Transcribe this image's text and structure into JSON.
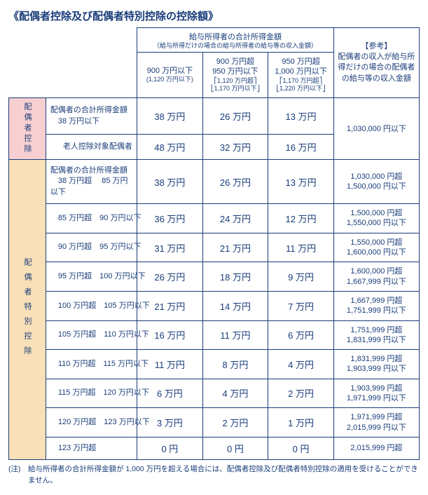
{
  "title": "《配偶者控除及び配偶者特別控除の控除額》",
  "header": {
    "group_title": "給与所得者の合計所得金額",
    "group_sub": "（給与所得だけの場合の給与所得者の給与等の収入金額）",
    "ref_title": "【参考】",
    "ref_desc": "配偶者の収入が給与所得だけの場合の配偶者の給与等の収入金額",
    "cols": [
      {
        "line1": "900 万円以下",
        "line2": "(1,120 万円以下)"
      },
      {
        "line1": "900 万円超",
        "line2": "950 万円以下",
        "b1": "1,120 万円超",
        "b2": "1,170 万円以下"
      },
      {
        "line1": "950 万円超",
        "line2": "1,000 万円以下",
        "b1": "1,170 万円超",
        "b2": "1,220 万円以下"
      }
    ]
  },
  "section1": {
    "label": "配偶者控除",
    "row1_desc": "配偶者の合計所得金額\n　38 万円以下",
    "row1": [
      "38 万円",
      "26 万円",
      "13 万円"
    ],
    "row2_desc": "老人控除対象配偶者",
    "row2": [
      "48 万円",
      "32 万円",
      "16 万円"
    ],
    "ref_merged": "1,030,000 円以下"
  },
  "section2": {
    "label": "配偶者特別控除",
    "rows": [
      {
        "desc": "配偶者の合計所得金額\n　38 万円超　 85 万円以下",
        "vals": [
          "38 万円",
          "26 万円",
          "13 万円"
        ],
        "ref": "1,030,000 円超\n1,500,000 円以下"
      },
      {
        "desc2": [
          "85 万円超",
          "90 万円以下"
        ],
        "vals": [
          "36 万円",
          "24 万円",
          "12 万円"
        ],
        "ref": "1,500,000 円超\n1,550,000 円以下"
      },
      {
        "desc2": [
          "90 万円超",
          "95 万円以下"
        ],
        "vals": [
          "31 万円",
          "21 万円",
          "11 万円"
        ],
        "ref": "1,550,000 円超\n1,600,000 円以下"
      },
      {
        "desc2": [
          "95 万円超",
          "100 万円以下"
        ],
        "vals": [
          "26 万円",
          "18 万円",
          "9 万円"
        ],
        "ref": "1,600,000 円超\n1,667,999 円以下"
      },
      {
        "desc2": [
          "100 万円超",
          "105 万円以下"
        ],
        "vals": [
          "21 万円",
          "14 万円",
          "7 万円"
        ],
        "ref": "1,667,999 円超\n1,751,999 円以下"
      },
      {
        "desc2": [
          "105 万円超",
          "110 万円以下"
        ],
        "vals": [
          "16 万円",
          "11 万円",
          "6 万円"
        ],
        "ref": "1,751,999 円超\n1,831,999 円以下"
      },
      {
        "desc2": [
          "110 万円超",
          "115 万円以下"
        ],
        "vals": [
          "11 万円",
          "8 万円",
          "4 万円"
        ],
        "ref": "1,831,999 円超\n1,903,999 円以下"
      },
      {
        "desc2": [
          "115 万円超",
          "120 万円以下"
        ],
        "vals": [
          "6 万円",
          "4 万円",
          "2 万円"
        ],
        "ref": "1,903,999 円超\n1,971,999 円以下"
      },
      {
        "desc2": [
          "120 万円超",
          "123 万円以下"
        ],
        "vals": [
          "3 万円",
          "2 万円",
          "1 万円"
        ],
        "ref": "1,971,999 円超\n2,015,999 円以下"
      },
      {
        "desc2": [
          "123 万円超",
          ""
        ],
        "vals": [
          "0 円",
          "0 円",
          "0 円"
        ],
        "ref": "2,015,999 円超"
      }
    ]
  },
  "footnote": "(注)　給与所得者の合計所得金額が 1,000 万円を超える場合には、配偶者控除及び配偶者特別控除の適用を受けることができません。",
  "colors": {
    "border": "#1a3d7a",
    "text": "#1a3d7a",
    "pink": "#f7cfd1",
    "orange": "#f9e0b8",
    "background": "#ffffff"
  }
}
